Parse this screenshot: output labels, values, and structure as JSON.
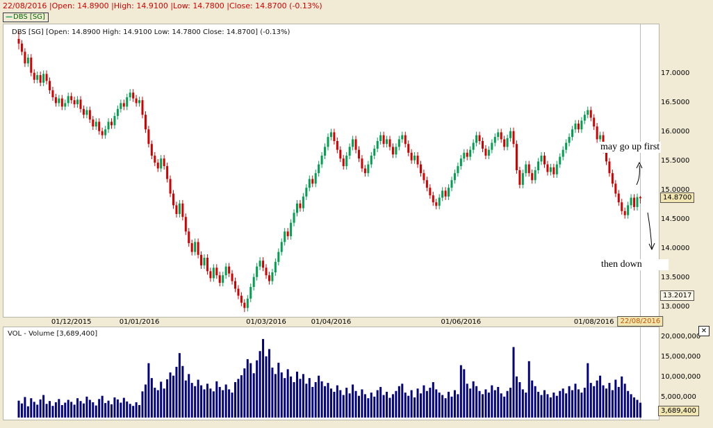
{
  "header": {
    "ohlc_summary": "22/08/2016 |Open: 14.8900 |High: 14.9100 |Low: 14.7800 |Close: 14.8700 (-0.13%)",
    "legend_dash": "—",
    "legend_label": "DBS [SG]"
  },
  "price_panel": {
    "overlay_title": "DBS [SG] [Open: 14.8900  High: 14.9100  Low: 14.7800  Close: 14.8700] (-0.13%)",
    "annotation_up": "may go up first",
    "annotation_down": "then down",
    "last_price_label": "14.8700",
    "trend_value_label": "13.2017"
  },
  "x_axis": {
    "current_date_label": "22/08/2016"
  },
  "volume_panel": {
    "title": "VOL - Volume [3,689,400]",
    "last_volume_label": "3,689,400"
  },
  "icons": {
    "close": "✕"
  },
  "colors": {
    "background": "#f1ebd5",
    "panel_bg": "#ffffff",
    "up_candle": "#00a050",
    "down_candle": "#d40000",
    "volume_bar": "#000080",
    "summary_text": "#d40000",
    "current_line": "#b9b9b9"
  },
  "chart_data": [
    {
      "type": "candlestick",
      "title": "DBS [SG]",
      "last_date": "22/08/2016",
      "last_ohlc": {
        "open": 14.89,
        "high": 14.91,
        "low": 14.78,
        "close": 14.87,
        "change_pct": -0.13
      },
      "ylim": [
        12.85,
        17.85
      ],
      "price_ticks": [
        {
          "text": "17.0000",
          "value": 17.0
        },
        {
          "text": "16.5000",
          "value": 16.5
        },
        {
          "text": "16.0000",
          "value": 16.0
        },
        {
          "text": "15.5000",
          "value": 15.5
        },
        {
          "text": "15.0000",
          "value": 15.0
        },
        {
          "text": "14.5000",
          "value": 14.5
        },
        {
          "text": "14.0000",
          "value": 14.0
        },
        {
          "text": "13.5000",
          "value": 13.5
        },
        {
          "text": "13.0000",
          "value": 13.0
        }
      ],
      "extra_axis_value": {
        "text": "13.2017",
        "value": 13.2017
      },
      "last_close_marker": {
        "text": "14.8700",
        "value": 14.87
      },
      "x_ticks": [
        {
          "text": "01/12/2015",
          "index": 17
        },
        {
          "text": "01/01/2016",
          "index": 39
        },
        {
          "text": "01/03/2016",
          "index": 80
        },
        {
          "text": "01/04/2016",
          "index": 101
        },
        {
          "text": "01/06/2016",
          "index": 143
        },
        {
          "text": "01/08/2016",
          "index": 186
        },
        {
          "text": "22/08/2016",
          "index": 201,
          "highlighted": true
        }
      ],
      "annotations": [
        {
          "text": "may go up first",
          "direction": "up"
        },
        {
          "text": "then down",
          "direction": "down"
        }
      ],
      "open": [
        17.6,
        17.52,
        17.38,
        17.18,
        17.28,
        17.02,
        16.9,
        16.98,
        16.85,
        17.0,
        16.88,
        16.72,
        16.6,
        16.5,
        16.58,
        16.44,
        16.5,
        16.62,
        16.55,
        16.48,
        16.56,
        16.4,
        16.3,
        16.38,
        16.22,
        16.1,
        16.18,
        16.02,
        15.95,
        16.05,
        16.18,
        16.12,
        16.28,
        16.4,
        16.5,
        16.44,
        16.6,
        16.68,
        16.58,
        16.5,
        16.55,
        16.3,
        16.05,
        15.8,
        15.6,
        15.48,
        15.38,
        15.55,
        15.42,
        15.2,
        14.95,
        14.75,
        14.6,
        14.78,
        14.55,
        14.3,
        14.1,
        13.95,
        14.12,
        13.9,
        13.72,
        13.85,
        13.62,
        13.5,
        13.68,
        13.55,
        13.42,
        13.55,
        13.7,
        13.58,
        13.45,
        13.32,
        13.2,
        13.08,
        12.99,
        13.15,
        13.35,
        13.52,
        13.7,
        13.8,
        13.68,
        13.55,
        13.45,
        13.6,
        13.78,
        13.95,
        14.12,
        14.3,
        14.22,
        14.45,
        14.62,
        14.78,
        14.7,
        14.9,
        15.05,
        15.2,
        15.12,
        15.3,
        15.45,
        15.6,
        15.75,
        15.92,
        16.0,
        15.85,
        15.7,
        15.55,
        15.42,
        15.6,
        15.75,
        15.88,
        15.7,
        15.55,
        15.38,
        15.3,
        15.45,
        15.6,
        15.72,
        15.85,
        15.95,
        15.8,
        15.88,
        15.75,
        15.62,
        15.75,
        15.88,
        15.95,
        15.8,
        15.65,
        15.52,
        15.6,
        15.45,
        15.3,
        15.18,
        15.05,
        14.92,
        14.8,
        14.74,
        14.88,
        15.0,
        14.9,
        15.05,
        15.18,
        15.3,
        15.42,
        15.55,
        15.65,
        15.58,
        15.7,
        15.82,
        15.95,
        15.85,
        15.72,
        15.6,
        15.7,
        15.82,
        15.92,
        16.0,
        15.88,
        15.75,
        15.9,
        16.02,
        15.8,
        15.35,
        15.1,
        15.3,
        15.45,
        15.3,
        15.18,
        15.35,
        15.5,
        15.6,
        15.45,
        15.32,
        15.4,
        15.28,
        15.45,
        15.58,
        15.7,
        15.82,
        15.92,
        16.05,
        16.15,
        16.05,
        16.2,
        16.3,
        16.38,
        16.25,
        16.1,
        15.88,
        15.95,
        15.7,
        15.5,
        15.3,
        15.12,
        14.95,
        14.8,
        14.65,
        14.58,
        14.75,
        14.88,
        14.72,
        14.89
      ],
      "high": [
        17.72,
        17.58,
        17.44,
        17.34,
        17.34,
        17.08,
        17.04,
        17.04,
        17.06,
        17.06,
        16.94,
        16.78,
        16.66,
        16.64,
        16.64,
        16.56,
        16.68,
        16.68,
        16.61,
        16.62,
        16.62,
        16.46,
        16.44,
        16.44,
        16.28,
        16.24,
        16.24,
        16.08,
        16.11,
        16.24,
        16.24,
        16.34,
        16.46,
        16.56,
        16.56,
        16.66,
        16.74,
        16.74,
        16.64,
        16.61,
        16.61,
        16.36,
        16.11,
        15.86,
        15.66,
        15.54,
        15.61,
        15.61,
        15.48,
        15.26,
        15.01,
        14.81,
        14.84,
        14.84,
        14.61,
        14.36,
        14.16,
        14.18,
        14.18,
        13.96,
        13.91,
        13.91,
        13.68,
        13.74,
        13.74,
        13.61,
        13.61,
        13.76,
        13.76,
        13.64,
        13.51,
        13.38,
        13.26,
        13.14,
        13.21,
        13.41,
        13.58,
        13.76,
        13.86,
        13.86,
        13.74,
        13.61,
        13.66,
        13.84,
        14.01,
        14.18,
        14.36,
        14.36,
        14.51,
        14.68,
        14.84,
        14.84,
        14.96,
        15.11,
        15.26,
        15.26,
        15.36,
        15.51,
        15.66,
        15.81,
        15.98,
        16.06,
        16.06,
        15.91,
        15.76,
        15.61,
        15.66,
        15.81,
        15.94,
        15.94,
        15.76,
        15.61,
        15.44,
        15.51,
        15.66,
        15.78,
        15.91,
        16.01,
        16.01,
        15.94,
        15.94,
        15.81,
        15.81,
        15.94,
        16.01,
        16.01,
        15.86,
        15.71,
        15.66,
        15.66,
        15.51,
        15.36,
        15.24,
        15.11,
        14.98,
        14.86,
        14.94,
        15.06,
        15.06,
        15.11,
        15.24,
        15.36,
        15.48,
        15.61,
        15.71,
        15.71,
        15.76,
        15.88,
        16.01,
        16.01,
        15.91,
        15.78,
        15.76,
        15.88,
        15.98,
        16.06,
        16.06,
        15.94,
        15.96,
        16.08,
        16.08,
        15.86,
        15.41,
        15.36,
        15.51,
        15.51,
        15.36,
        15.41,
        15.56,
        15.66,
        15.66,
        15.51,
        15.46,
        15.46,
        15.51,
        15.64,
        15.76,
        15.88,
        15.98,
        16.11,
        16.21,
        16.21,
        16.26,
        16.36,
        16.44,
        16.44,
        16.31,
        16.16,
        16.01,
        16.01,
        15.76,
        15.56,
        15.36,
        15.18,
        15.01,
        14.86,
        14.71,
        14.81,
        14.94,
        14.94,
        14.95,
        14.91
      ],
      "low": [
        17.42,
        17.32,
        17.12,
        17.12,
        16.96,
        16.84,
        16.84,
        16.79,
        16.79,
        16.82,
        16.66,
        16.54,
        16.44,
        16.44,
        16.38,
        16.38,
        16.44,
        16.49,
        16.42,
        16.42,
        16.34,
        16.24,
        16.24,
        16.16,
        16.04,
        16.04,
        15.96,
        15.89,
        15.89,
        15.99,
        16.06,
        16.06,
        16.22,
        16.34,
        16.38,
        16.38,
        16.54,
        16.52,
        16.44,
        16.44,
        16.24,
        15.99,
        15.74,
        15.54,
        15.42,
        15.32,
        15.32,
        15.36,
        15.14,
        14.89,
        14.69,
        14.54,
        14.54,
        14.49,
        14.24,
        14.04,
        13.89,
        13.89,
        13.84,
        13.66,
        13.66,
        13.56,
        13.44,
        13.44,
        13.49,
        13.36,
        13.36,
        13.49,
        13.52,
        13.39,
        13.26,
        13.14,
        13.02,
        12.92,
        12.93,
        13.09,
        13.29,
        13.46,
        13.64,
        13.62,
        13.49,
        13.39,
        13.39,
        13.54,
        13.72,
        13.89,
        14.06,
        14.16,
        14.16,
        14.39,
        14.56,
        14.64,
        14.64,
        14.84,
        14.99,
        15.06,
        15.06,
        15.24,
        15.39,
        15.54,
        15.69,
        15.86,
        15.79,
        15.64,
        15.49,
        15.36,
        15.36,
        15.54,
        15.69,
        15.64,
        15.49,
        15.32,
        15.24,
        15.24,
        15.39,
        15.54,
        15.66,
        15.79,
        15.74,
        15.74,
        15.69,
        15.56,
        15.56,
        15.69,
        15.82,
        15.74,
        15.59,
        15.46,
        15.46,
        15.39,
        15.24,
        15.12,
        14.99,
        14.86,
        14.74,
        14.68,
        14.68,
        14.82,
        14.84,
        14.84,
        14.99,
        15.12,
        15.24,
        15.36,
        15.49,
        15.52,
        15.52,
        15.64,
        15.76,
        15.79,
        15.66,
        15.54,
        15.54,
        15.64,
        15.76,
        15.86,
        15.82,
        15.69,
        15.69,
        15.84,
        15.74,
        15.29,
        15.04,
        15.04,
        15.24,
        15.24,
        15.12,
        15.12,
        15.29,
        15.44,
        15.39,
        15.26,
        15.26,
        15.22,
        15.22,
        15.39,
        15.52,
        15.64,
        15.76,
        15.86,
        15.99,
        15.99,
        15.99,
        16.14,
        16.24,
        16.19,
        16.04,
        15.82,
        15.82,
        15.64,
        15.44,
        15.24,
        15.06,
        14.89,
        14.74,
        14.59,
        14.52,
        14.52,
        14.69,
        14.66,
        14.66,
        14.78
      ],
      "close": [
        17.52,
        17.38,
        17.18,
        17.28,
        17.02,
        16.9,
        16.98,
        16.85,
        17.0,
        16.88,
        16.72,
        16.6,
        16.5,
        16.58,
        16.44,
        16.5,
        16.62,
        16.55,
        16.48,
        16.56,
        16.4,
        16.3,
        16.38,
        16.22,
        16.1,
        16.18,
        16.02,
        15.95,
        16.05,
        16.18,
        16.12,
        16.28,
        16.4,
        16.5,
        16.44,
        16.6,
        16.68,
        16.58,
        16.5,
        16.55,
        16.3,
        16.05,
        15.8,
        15.6,
        15.48,
        15.38,
        15.55,
        15.42,
        15.2,
        14.95,
        14.75,
        14.6,
        14.78,
        14.55,
        14.3,
        14.1,
        13.95,
        14.12,
        13.9,
        13.72,
        13.85,
        13.62,
        13.5,
        13.68,
        13.55,
        13.42,
        13.55,
        13.7,
        13.58,
        13.45,
        13.32,
        13.2,
        13.08,
        12.99,
        13.15,
        13.35,
        13.52,
        13.7,
        13.8,
        13.68,
        13.55,
        13.45,
        13.6,
        13.78,
        13.95,
        14.12,
        14.3,
        14.22,
        14.45,
        14.62,
        14.78,
        14.7,
        14.9,
        15.05,
        15.2,
        15.12,
        15.3,
        15.45,
        15.6,
        15.75,
        15.92,
        16.0,
        15.85,
        15.7,
        15.55,
        15.42,
        15.6,
        15.75,
        15.88,
        15.7,
        15.55,
        15.38,
        15.3,
        15.45,
        15.6,
        15.72,
        15.85,
        15.95,
        15.8,
        15.88,
        15.75,
        15.62,
        15.75,
        15.88,
        15.95,
        15.8,
        15.65,
        15.52,
        15.6,
        15.45,
        15.3,
        15.18,
        15.05,
        14.92,
        14.8,
        14.74,
        14.88,
        15.0,
        14.9,
        15.05,
        15.18,
        15.3,
        15.42,
        15.55,
        15.65,
        15.58,
        15.7,
        15.82,
        15.95,
        15.85,
        15.72,
        15.6,
        15.7,
        15.82,
        15.92,
        16.0,
        15.88,
        15.75,
        15.9,
        16.02,
        15.8,
        15.35,
        15.1,
        15.3,
        15.45,
        15.3,
        15.18,
        15.35,
        15.5,
        15.6,
        15.45,
        15.32,
        15.4,
        15.28,
        15.45,
        15.58,
        15.7,
        15.82,
        15.92,
        16.05,
        16.15,
        16.05,
        16.2,
        16.3,
        16.38,
        16.25,
        16.1,
        15.88,
        15.95,
        15.7,
        15.5,
        15.3,
        15.12,
        14.95,
        14.8,
        14.65,
        14.58,
        14.75,
        14.88,
        14.72,
        14.89,
        14.87
      ]
    },
    {
      "type": "bar",
      "title": "VOL - Volume [3,689,400]",
      "ylim_millions": [
        0,
        22.4
      ],
      "yticks": [
        {
          "text": "20,000,000",
          "value_millions": 20
        },
        {
          "text": "15,000,000",
          "value_millions": 15
        },
        {
          "text": "10,000,000",
          "value_millions": 10
        },
        {
          "text": "5,000,000",
          "value_millions": 5
        }
      ],
      "last_value": {
        "text": "3,689,400",
        "value": 3689400
      },
      "values_millions": [
        4.2,
        3.5,
        5.1,
        2.8,
        4.8,
        3.9,
        3.2,
        4.5,
        5.6,
        3.4,
        4.1,
        2.9,
        3.8,
        4.6,
        3.1,
        3.7,
        4.4,
        3.9,
        3.2,
        4.8,
        4.1,
        3.5,
        5.2,
        4.4,
        3.8,
        3.0,
        4.6,
        5.4,
        3.6,
        4.2,
        3.3,
        5.0,
        4.5,
        3.7,
        4.9,
        4.0,
        3.4,
        2.9,
        3.8,
        3.1,
        6.5,
        8.2,
        13.5,
        9.8,
        7.4,
        6.8,
        8.9,
        7.2,
        9.5,
        11.2,
        10.4,
        12.6,
        16.0,
        12.8,
        9.2,
        10.8,
        8.6,
        7.8,
        9.4,
        8.0,
        7.0,
        8.4,
        7.2,
        6.5,
        9.0,
        7.6,
        6.8,
        8.2,
        7.0,
        6.2,
        8.8,
        9.6,
        10.5,
        12.2,
        14.5,
        13.5,
        11.0,
        14.2,
        16.5,
        19.5,
        15.2,
        17.0,
        12.4,
        10.8,
        13.6,
        11.2,
        9.8,
        12.0,
        10.2,
        8.8,
        11.4,
        9.6,
        10.8,
        8.4,
        9.8,
        7.6,
        8.8,
        10.4,
        9.0,
        7.8,
        8.6,
        7.2,
        6.4,
        8.0,
        6.8,
        5.6,
        7.4,
        6.0,
        8.2,
        6.6,
        5.4,
        7.0,
        5.8,
        4.8,
        6.2,
        5.2,
        6.8,
        7.6,
        5.6,
        6.4,
        4.9,
        5.8,
        6.6,
        7.8,
        8.4,
        6.2,
        5.4,
        6.8,
        5.0,
        7.2,
        6.0,
        8.0,
        6.6,
        7.4,
        8.8,
        7.0,
        6.2,
        5.6,
        4.8,
        6.4,
        5.2,
        6.8,
        5.8,
        13.0,
        12.0,
        8.4,
        7.2,
        9.0,
        7.8,
        6.6,
        5.8,
        7.0,
        6.2,
        8.0,
        6.8,
        7.6,
        6.0,
        5.2,
        6.6,
        7.4,
        17.5,
        10.2,
        8.8,
        7.0,
        6.2,
        14.0,
        9.2,
        7.8,
        6.4,
        5.6,
        6.8,
        5.8,
        5.0,
        6.2,
        5.4,
        6.6,
        7.2,
        6.0,
        7.8,
        6.8,
        8.4,
        7.0,
        6.2,
        7.4,
        13.5,
        8.6,
        7.8,
        9.2,
        10.4,
        8.0,
        7.2,
        8.6,
        6.8,
        9.4,
        7.6,
        10.2,
        8.4,
        6.6,
        5.8,
        5.0,
        4.4,
        3.6894
      ]
    }
  ]
}
